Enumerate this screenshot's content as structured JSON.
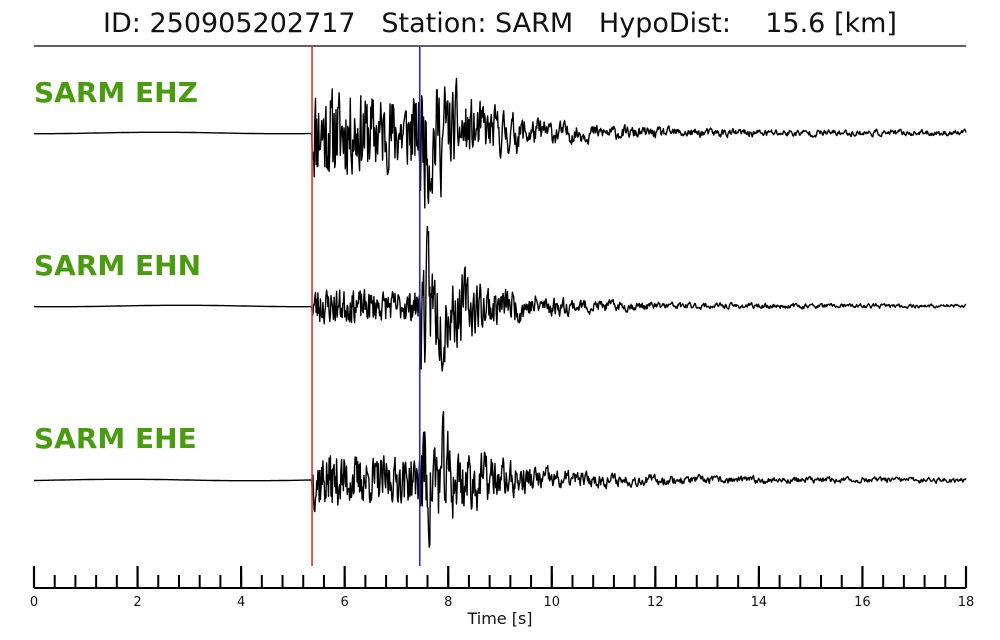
{
  "header": {
    "title": "ID: 250905202717   Station: SARM   HypoDist:    15.6 [km]"
  },
  "chart_data": {
    "type": "line",
    "xlabel": "Time [s]",
    "xlim": [
      0,
      18
    ],
    "x_ticks": [
      "0",
      "2",
      "4",
      "6",
      "8",
      "10",
      "12",
      "14",
      "16",
      "18"
    ],
    "minor_tick_step": 0.4,
    "p_pick_time": 5.37,
    "s_pick_time": 7.45,
    "pick_colors": {
      "p": "#e8302a",
      "s": "#2b2bb5"
    },
    "label_color": "#4a9a12",
    "trace_color": "#000000",
    "channels": [
      {
        "label": "SARM EHZ",
        "noise": 0.02,
        "p_amp": 0.5,
        "s_amp": 1.0,
        "coda": 0.09,
        "seed": 11
      },
      {
        "label": "SARM EHN",
        "noise": 0.02,
        "p_amp": 0.2,
        "s_amp": 1.0,
        "coda": 0.06,
        "seed": 23
      },
      {
        "label": "SARM EHE",
        "noise": 0.02,
        "p_amp": 0.3,
        "s_amp": 1.0,
        "coda": 0.08,
        "seed": 37
      }
    ]
  }
}
